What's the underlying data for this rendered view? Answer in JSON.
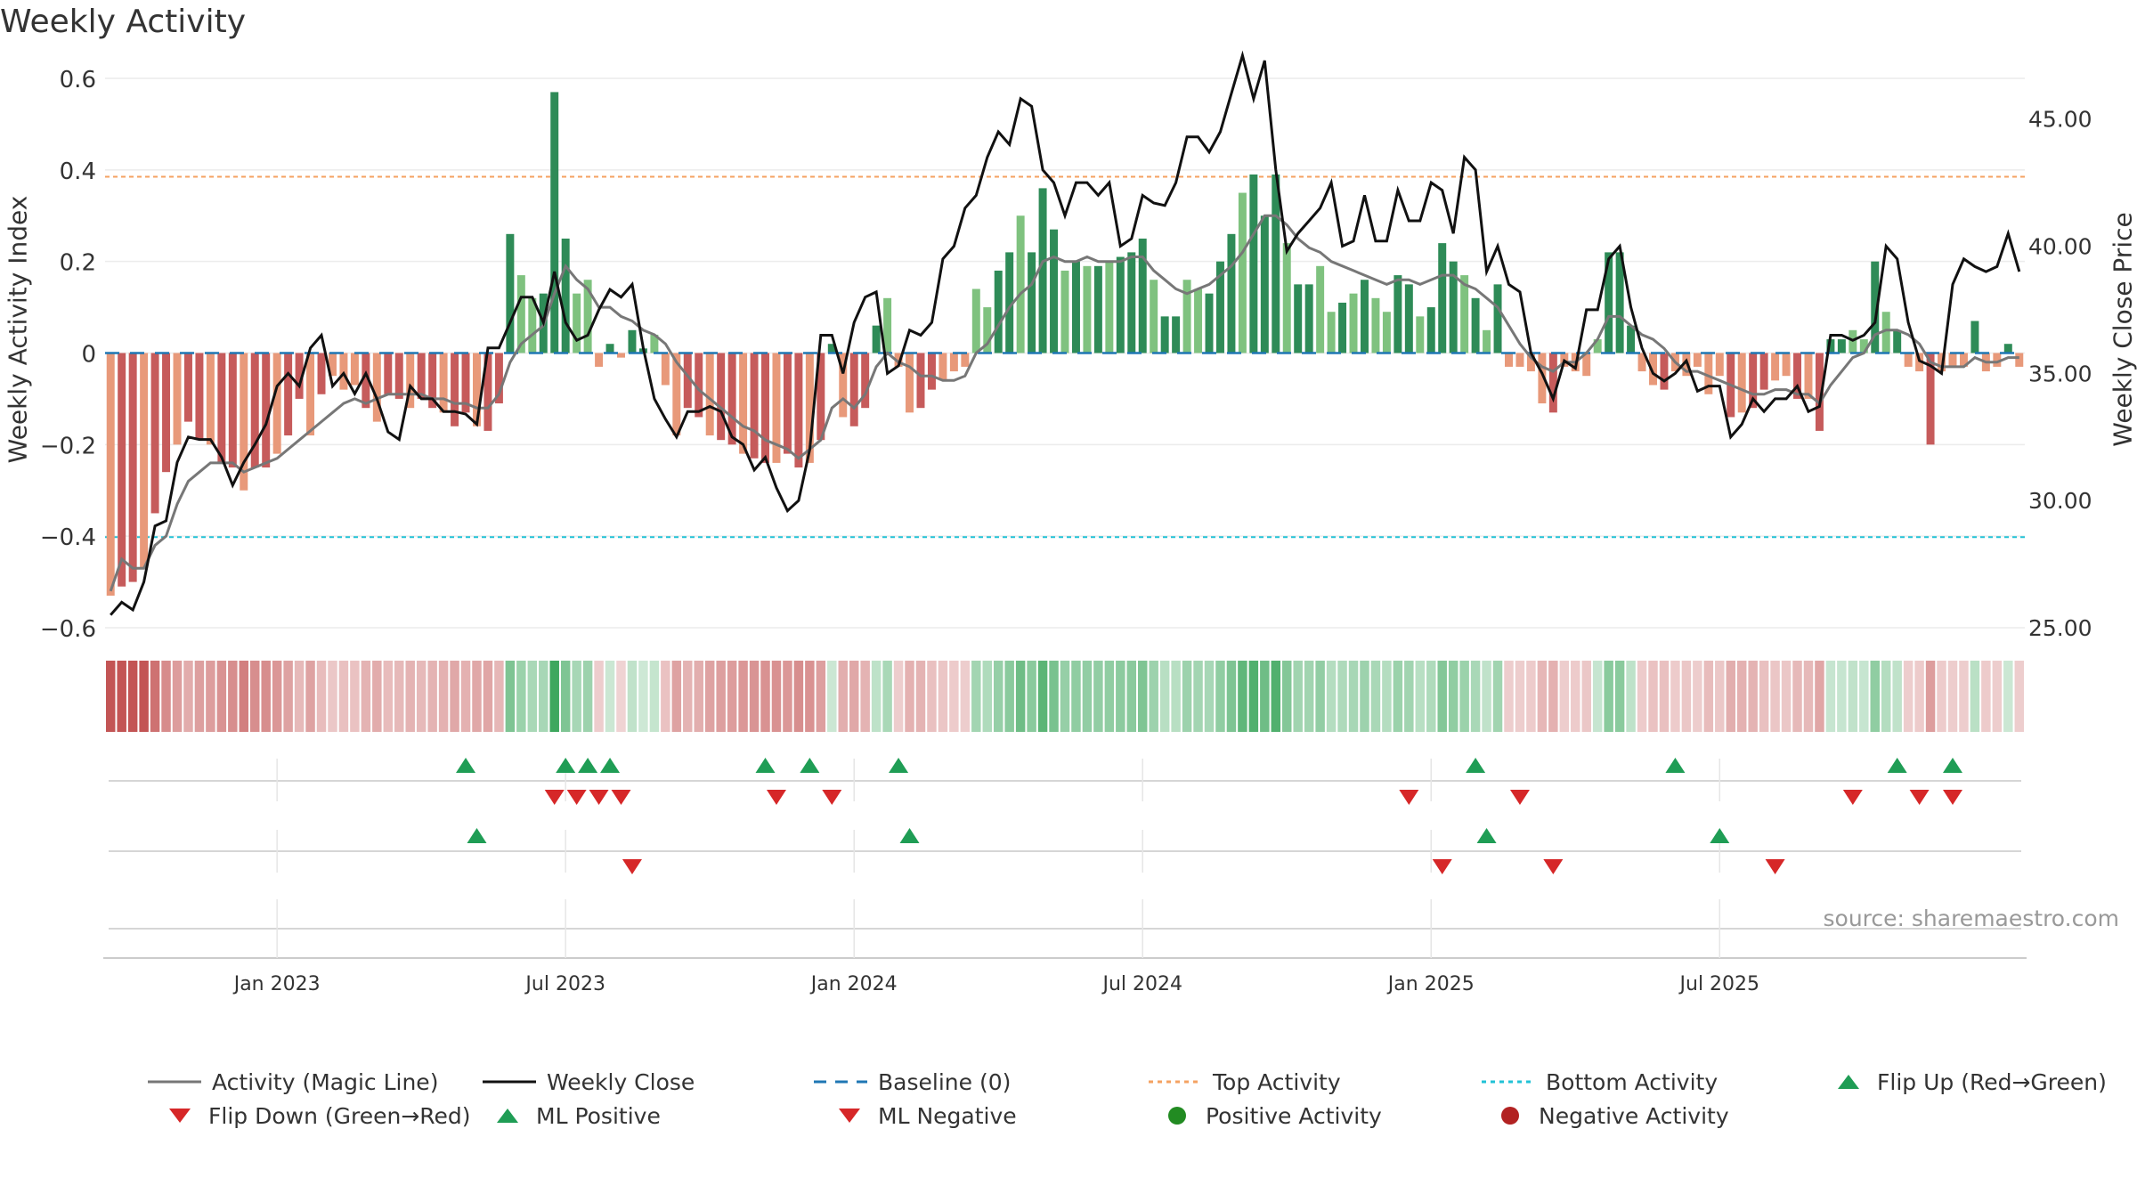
{
  "title": "Weekly Activity",
  "chart_data": {
    "type": "bar",
    "title": "Weekly Activity",
    "ylabel_left": "Weekly Activity Index",
    "ylabel_right": "Weekly Close Price",
    "ylim_left": [
      -0.6,
      0.6
    ],
    "ylim_right": [
      25,
      46.6
    ],
    "yticks_left": [
      {
        "v": 0.6,
        "label": "0.6"
      },
      {
        "v": 0.4,
        "label": "0.4"
      },
      {
        "v": 0.2,
        "label": "0.2"
      },
      {
        "v": 0,
        "label": "0"
      },
      {
        "v": -0.2,
        "label": "−0.2"
      },
      {
        "v": -0.4,
        "label": "−0.4"
      },
      {
        "v": -0.6,
        "label": "−0.6"
      }
    ],
    "yticks_right": [
      {
        "v": 45,
        "label": "45.00"
      },
      {
        "v": 40,
        "label": "40.00"
      },
      {
        "v": 35,
        "label": "35.00"
      },
      {
        "v": 30,
        "label": "30.00"
      },
      {
        "v": 25,
        "label": "25.00"
      }
    ],
    "xticks": [
      {
        "week": 15,
        "label": "Jan 2023"
      },
      {
        "week": 41,
        "label": "Jul 2023"
      },
      {
        "week": 67,
        "label": "Jan 2024"
      },
      {
        "week": 93,
        "label": "Jul 2024"
      },
      {
        "week": 119,
        "label": "Jan 2025"
      },
      {
        "week": 145,
        "label": "Jul 2025"
      }
    ],
    "top_activity": 0.385,
    "bottom_activity": -0.402,
    "activity": [
      -0.53,
      -0.51,
      -0.5,
      -0.47,
      -0.35,
      -0.26,
      -0.2,
      -0.15,
      -0.19,
      -0.2,
      -0.24,
      -0.25,
      -0.3,
      -0.25,
      -0.25,
      -0.22,
      -0.18,
      -0.1,
      -0.18,
      -0.09,
      -0.05,
      -0.08,
      -0.07,
      -0.12,
      -0.15,
      -0.09,
      -0.1,
      -0.12,
      -0.1,
      -0.12,
      -0.13,
      -0.16,
      -0.13,
      -0.16,
      -0.17,
      -0.11,
      0.26,
      0.17,
      0.12,
      0.13,
      0.57,
      0.25,
      0.13,
      0.16,
      -0.03,
      0.02,
      -0.01,
      0.05,
      0.01,
      0.04,
      -0.07,
      -0.18,
      -0.12,
      -0.14,
      -0.18,
      -0.19,
      -0.2,
      -0.22,
      -0.23,
      -0.24,
      -0.24,
      -0.22,
      -0.25,
      -0.24,
      -0.19,
      0.02,
      -0.14,
      -0.16,
      -0.12,
      0.06,
      0.12,
      -0.03,
      -0.13,
      -0.12,
      -0.08,
      -0.06,
      -0.04,
      -0.03,
      0.14,
      0.1,
      0.18,
      0.22,
      0.3,
      0.22,
      0.36,
      0.27,
      0.18,
      0.2,
      0.19,
      0.19,
      0.2,
      0.21,
      0.22,
      0.25,
      0.16,
      0.08,
      0.08,
      0.16,
      0.14,
      0.13,
      0.2,
      0.26,
      0.35,
      0.39,
      0.3,
      0.39,
      0.24,
      0.15,
      0.15,
      0.19,
      0.09,
      0.11,
      0.13,
      0.16,
      0.12,
      0.09,
      0.17,
      0.15,
      0.08,
      0.1,
      0.24,
      0.2,
      0.17,
      0.12,
      0.05,
      0.15,
      -0.03,
      -0.03,
      -0.04,
      -0.11,
      -0.13,
      -0.03,
      -0.04,
      -0.05,
      0.03,
      0.22,
      0.22,
      0.06,
      -0.04,
      -0.07,
      -0.08,
      -0.04,
      -0.05,
      -0.03,
      -0.09,
      -0.05,
      -0.14,
      -0.13,
      -0.12,
      -0.08,
      -0.06,
      -0.05,
      -0.1,
      -0.1,
      -0.17,
      0.03,
      0.03,
      0.05,
      0.03,
      0.2,
      0.09,
      0.05,
      -0.03,
      -0.04,
      -0.2,
      -0.04,
      -0.03,
      -0.03,
      0.07,
      -0.04,
      -0.03,
      0.02,
      -0.03
    ],
    "magic_line": [
      -0.52,
      -0.45,
      -0.47,
      -0.47,
      -0.42,
      -0.4,
      -0.33,
      -0.28,
      -0.26,
      -0.24,
      -0.24,
      -0.24,
      -0.26,
      -0.25,
      -0.24,
      -0.23,
      -0.21,
      -0.19,
      -0.17,
      -0.15,
      -0.13,
      -0.11,
      -0.1,
      -0.11,
      -0.1,
      -0.09,
      -0.09,
      -0.09,
      -0.09,
      -0.1,
      -0.1,
      -0.11,
      -0.11,
      -0.12,
      -0.12,
      -0.09,
      -0.02,
      0.02,
      0.04,
      0.06,
      0.13,
      0.19,
      0.16,
      0.14,
      0.1,
      0.1,
      0.08,
      0.07,
      0.05,
      0.04,
      0.02,
      -0.02,
      -0.05,
      -0.08,
      -0.1,
      -0.12,
      -0.14,
      -0.16,
      -0.17,
      -0.19,
      -0.2,
      -0.21,
      -0.23,
      -0.21,
      -0.19,
      -0.12,
      -0.1,
      -0.12,
      -0.09,
      -0.03,
      0,
      -0.02,
      -0.03,
      -0.05,
      -0.05,
      -0.06,
      -0.06,
      -0.05,
      0,
      0.02,
      0.06,
      0.1,
      0.13,
      0.15,
      0.2,
      0.21,
      0.2,
      0.2,
      0.21,
      0.2,
      0.2,
      0.2,
      0.21,
      0.21,
      0.18,
      0.16,
      0.14,
      0.13,
      0.14,
      0.15,
      0.17,
      0.19,
      0.22,
      0.26,
      0.3,
      0.3,
      0.28,
      0.25,
      0.23,
      0.22,
      0.2,
      0.19,
      0.18,
      0.17,
      0.16,
      0.15,
      0.16,
      0.16,
      0.15,
      0.16,
      0.17,
      0.17,
      0.15,
      0.14,
      0.12,
      0.1,
      0.06,
      0.02,
      -0.01,
      -0.03,
      -0.04,
      -0.02,
      -0.02,
      0,
      0.03,
      0.08,
      0.08,
      0.06,
      0.04,
      0.03,
      0.01,
      -0.02,
      -0.04,
      -0.04,
      -0.05,
      -0.06,
      -0.07,
      -0.08,
      -0.09,
      -0.09,
      -0.08,
      -0.08,
      -0.09,
      -0.09,
      -0.11,
      -0.07,
      -0.04,
      -0.01,
      0,
      0.04,
      0.05,
      0.05,
      0.04,
      0.02,
      -0.02,
      -0.03,
      -0.03,
      -0.03,
      -0.01,
      -0.02,
      -0.02,
      -0.01,
      -0.01
    ],
    "weekly_close": [
      25.5,
      26,
      25.7,
      26.8,
      29,
      29.2,
      31.5,
      32.5,
      32.4,
      32.4,
      31.7,
      30.6,
      31.5,
      32.2,
      33,
      34.5,
      35,
      34.5,
      36,
      36.5,
      34.5,
      35,
      34.2,
      35,
      34,
      32.7,
      32.4,
      34.5,
      34,
      34,
      33.5,
      33.5,
      33.4,
      33,
      36,
      36,
      37,
      38,
      38,
      37,
      39,
      37,
      36.3,
      36.5,
      37.5,
      38.3,
      38,
      38.5,
      36,
      34,
      33.2,
      32.5,
      33.5,
      33.5,
      33.7,
      33.5,
      32.5,
      32.2,
      31.2,
      31.7,
      30.5,
      29.6,
      30,
      32,
      36.5,
      36.5,
      35,
      37,
      38,
      38.2,
      35,
      35.3,
      36.7,
      36.5,
      37,
      39.5,
      40,
      41.5,
      42,
      43.5,
      44.5,
      44,
      45.8,
      45.5,
      43,
      42.5,
      41.2,
      42.5,
      42.5,
      42,
      42.5,
      40,
      40.3,
      42,
      41.7,
      41.6,
      42.5,
      44.3,
      44.3,
      43.7,
      44.5,
      46,
      47.5,
      45.8,
      47.3,
      43,
      39.8,
      40.5,
      41,
      41.5,
      42.5,
      40,
      40.2,
      42,
      40.2,
      40.2,
      42.2,
      41,
      41,
      42.5,
      42.2,
      40.5,
      43.5,
      43,
      39,
      40,
      38.5,
      38.2,
      35.8,
      35,
      34,
      35.5,
      35.2,
      37.5,
      37.5,
      39.5,
      40,
      37.6,
      36,
      35,
      34.7,
      35,
      35.5,
      34.3,
      34.5,
      34.5,
      32.5,
      33,
      34,
      33.5,
      34,
      34,
      34.5,
      33.5,
      33.7,
      36.5,
      36.5,
      36.3,
      36.5,
      37,
      40,
      39.5,
      37,
      35.5,
      35.3,
      35,
      38.5,
      39.5,
      39.2,
      39,
      39.2,
      40.5,
      39
    ],
    "flip_up": [
      32,
      41,
      43,
      45,
      59,
      63,
      71,
      123,
      141,
      161,
      166
    ],
    "flip_down": [
      40,
      42,
      44,
      46,
      60,
      65,
      117,
      127,
      157,
      163,
      166
    ],
    "ml_positive": [
      33,
      72,
      124,
      145
    ],
    "ml_negative": [
      47,
      120,
      130,
      150
    ],
    "positive_activity": [],
    "negative_activity": [],
    "legend": [
      "Activity (Magic Line)",
      "Weekly Close",
      "Baseline (0)",
      "Top Activity",
      "Bottom Activity",
      "Flip Up (Red→Green)",
      "Flip Down (Green→Red)",
      "ML Positive",
      "ML Negative",
      "Positive Activity",
      "Negative Activity"
    ],
    "source": "source: sharemaestro.com"
  },
  "colors": {
    "green_dark": "#2e8b57",
    "green_light": "#7fc27f",
    "red_dark": "#c65b5b",
    "red_light": "#e8997a",
    "magic_line": "#777777",
    "weekly_close": "#111111",
    "baseline": "#1f77b4",
    "top_activity": "#f4a261",
    "bottom_activity": "#22c2d6",
    "flip_up": "#1f9d55",
    "flip_down": "#d62728",
    "positive_dot": "#228b22",
    "negative_dot": "#b22222"
  }
}
